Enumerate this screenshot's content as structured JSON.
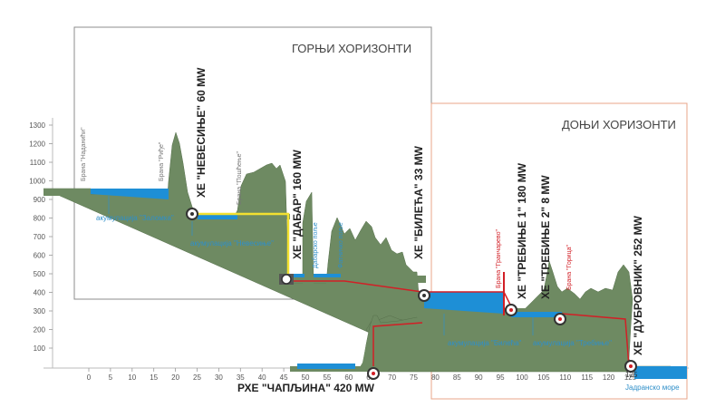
{
  "horizons": {
    "upper": "ГОРЊИ ХОРИЗОНТИ",
    "lower": "ДОЊИ ХОРИЗОНТИ"
  },
  "y_ticks": [
    "1300",
    "1200",
    "1100",
    "1000",
    "900",
    "800",
    "700",
    "600",
    "500",
    "400",
    "300",
    "200",
    "100"
  ],
  "x_ticks": [
    "0",
    "5",
    "10",
    "15",
    "20",
    "25",
    "30",
    "35",
    "40",
    "45",
    "50",
    "55",
    "60",
    "65",
    "70",
    "75",
    "80",
    "85",
    "90",
    "95",
    "100",
    "105",
    "110",
    "115",
    "120",
    "125"
  ],
  "dams": {
    "nadanjici": "Брана \"Нaдaнићи\"",
    "rijeka": "Брана \"Риђе\"",
    "posljednje": "Брана \"Пошћење\"",
    "grancarevo": "Брана \"Гранчарево\"",
    "gorica": "Брана \"Горица\""
  },
  "plants": {
    "nevesinje": "ХЕ \"НЕВЕСИЊЕ\" 60 MW",
    "dabar": "ХЕ \"ДАБАР\" 160 MW",
    "bileca": "ХЕ \"БИЛЕЋА\" 33 MW",
    "trebinje1": "ХЕ \"ТРЕБИЊЕ 1\" 180 MW",
    "trebinje2": "ХЕ \"ТРЕБИЊЕ 2\" 8 MW",
    "dubrovnik": "ХЕ \"ДУБРОВНИК\" 252 MW",
    "capljina": "РХЕ \"ЧАПЉИНА\" 420 MW"
  },
  "reservoirs": {
    "zalomka": "акумулација \"Заломка\"",
    "nevesinje": "акумулација \"Невесиње\"",
    "bileca": "акумулација \"Билећа\"",
    "trebinje": "акумулација \"Требиње\"",
    "sea": "Јадранско море"
  },
  "fields": {
    "dabarsko": "Дабарско поље",
    "fatnicko": "Фатничко поље"
  },
  "sea_km": "125",
  "colors": {
    "water": "#1e8fd6",
    "terrain": "#6e8a62",
    "tunnel_upper": "#f2e030",
    "tunnel_lower": "#d21f26",
    "frame_lower": "#e8a58a",
    "label_blue": "#2f8fc9"
  }
}
